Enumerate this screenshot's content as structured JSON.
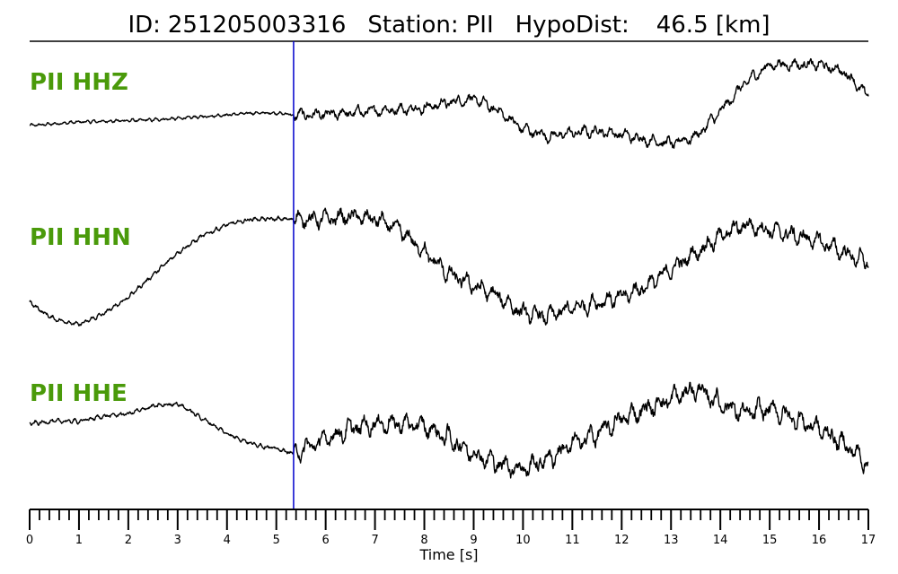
{
  "title": {
    "id_label": "ID:",
    "id_value": "251205003316",
    "station_label": "Station:",
    "station_value": "PII",
    "dist_label": "HypoDist:",
    "dist_value": "46.5 [km]"
  },
  "chart_data": {
    "type": "line",
    "title": "ID: 251205003316   Station: PII   HypoDist:    46.5 [km]",
    "xlabel": "Time [s]",
    "ylabel": "",
    "xlim": [
      0,
      17
    ],
    "x_major_ticks": [
      "0",
      "1",
      "2",
      "3",
      "4",
      "5",
      "6",
      "7",
      "8",
      "9",
      "10",
      "11",
      "12",
      "13",
      "14",
      "15",
      "16",
      "17"
    ],
    "x_minor_step": 0.2,
    "pick_time": 5.35,
    "pick_color": "#0000cc",
    "trace_color": "#000000",
    "label_color": "#4a9a0a",
    "series": [
      {
        "name": "PII HHZ",
        "envelope_t": [
          0,
          0.5,
          1,
          1.5,
          2,
          2.5,
          3,
          3.5,
          4,
          4.5,
          5,
          5.35,
          6,
          6.5,
          7,
          7.5,
          8,
          8.5,
          9,
          9.5,
          10,
          10.5,
          11,
          11.5,
          12,
          12.5,
          13,
          13.5,
          14,
          14.5,
          15,
          15.5,
          16,
          16.5,
          17
        ],
        "envelope_v": [
          -0.3,
          -0.25,
          -0.2,
          -0.18,
          -0.16,
          -0.14,
          -0.1,
          -0.05,
          0.0,
          0.05,
          0.05,
          0.0,
          0.0,
          0.05,
          0.12,
          0.15,
          0.2,
          0.35,
          0.45,
          0.1,
          -0.4,
          -0.6,
          -0.5,
          -0.45,
          -0.55,
          -0.7,
          -0.8,
          -0.6,
          0.1,
          0.9,
          1.4,
          1.4,
          1.4,
          1.2,
          0.5
        ],
        "noise_pre": 0.1,
        "noise_post": 0.35
      },
      {
        "name": "PII HHN",
        "envelope_t": [
          0,
          0.3,
          0.5,
          1,
          1.5,
          2,
          2.5,
          3,
          3.5,
          4,
          4.5,
          5,
          5.35,
          6,
          6.5,
          7,
          7.5,
          8,
          8.5,
          9,
          9.5,
          10,
          10.5,
          11,
          11.5,
          12,
          12.5,
          13,
          13.5,
          14,
          14.5,
          15,
          15.5,
          16,
          16.5,
          17
        ],
        "envelope_v": [
          -0.6,
          -0.8,
          -0.9,
          -1.0,
          -0.8,
          -0.5,
          -0.1,
          0.3,
          0.6,
          0.8,
          0.9,
          0.9,
          0.9,
          0.9,
          0.95,
          0.9,
          0.7,
          0.3,
          -0.1,
          -0.3,
          -0.5,
          -0.8,
          -0.85,
          -0.7,
          -0.6,
          -0.5,
          -0.3,
          0.0,
          0.3,
          0.6,
          0.8,
          0.7,
          0.6,
          0.5,
          0.3,
          0.1
        ],
        "noise_pre": 0.09,
        "noise_post": 0.35
      },
      {
        "name": "PII HHE",
        "envelope_t": [
          0,
          0.5,
          1,
          1.5,
          2,
          2.5,
          3,
          3.5,
          4,
          4.5,
          5,
          5.35,
          6,
          6.5,
          7,
          7.5,
          8,
          8.5,
          9,
          9.5,
          10,
          10.5,
          11,
          11.5,
          12,
          12.5,
          13,
          13.5,
          14,
          14.5,
          15,
          15.5,
          16,
          16.5,
          17
        ],
        "envelope_v": [
          0.1,
          0.15,
          0.15,
          0.25,
          0.3,
          0.45,
          0.5,
          0.2,
          -0.1,
          -0.3,
          -0.4,
          -0.5,
          -0.2,
          0.0,
          0.1,
          0.1,
          0.05,
          -0.2,
          -0.5,
          -0.7,
          -0.8,
          -0.6,
          -0.3,
          -0.1,
          0.2,
          0.4,
          0.6,
          0.8,
          0.5,
          0.3,
          0.4,
          0.2,
          0.0,
          -0.3,
          -0.7
        ],
        "noise_pre": 0.1,
        "noise_post": 0.45
      }
    ]
  }
}
